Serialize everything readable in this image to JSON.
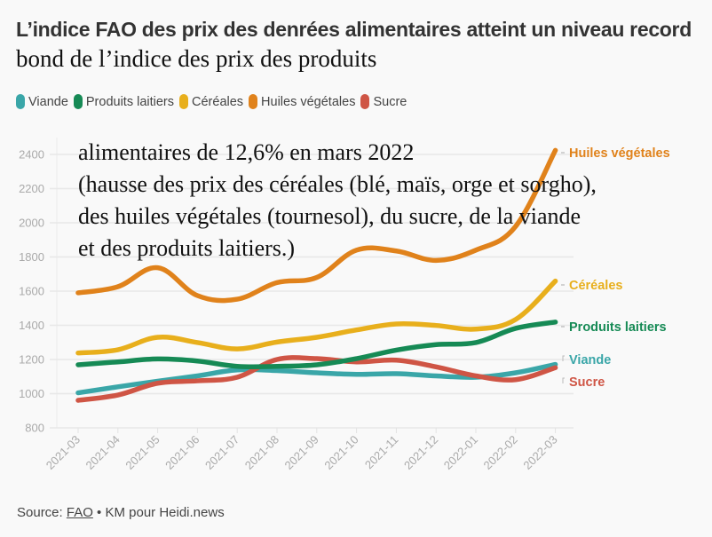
{
  "title": {
    "main": "L’indice FAO des prix des denrées alimentaires atteint un niveau record",
    "overlay_inline": "bond de l’indice des prix des produits"
  },
  "overlay_text": "alimentaires de 12,6% en mars 2022\n(hausse des prix des céréales (blé, maïs, orge et sorgho),\ndes huiles végétales (tournesol), du sucre, de la viande\net des produits laitiers.)",
  "legend": [
    {
      "label": "Viande",
      "color": "#3aa6a8"
    },
    {
      "label": "Produits laitiers",
      "color": "#168a55"
    },
    {
      "label": "Céréales",
      "color": "#e8af1c"
    },
    {
      "label": "Huiles végétales",
      "color": "#e0821b"
    },
    {
      "label": "Sucre",
      "color": "#cf5545"
    }
  ],
  "source": {
    "prefix": "Source: ",
    "link": "FAO",
    "suffix": " • KM pour Heidi.news"
  },
  "chart_data": {
    "type": "line",
    "title": "L’indice FAO des prix des denrées alimentaires atteint un niveau record",
    "xlabel": "",
    "ylabel": "",
    "x": [
      "2021-03",
      "2021-04",
      "2021-05",
      "2021-06",
      "2021-07",
      "2021-08",
      "2021-09",
      "2021-10",
      "2021-11",
      "2021-12",
      "2022-01",
      "2022-02",
      "2022-03"
    ],
    "ylim": [
      800,
      2400
    ],
    "yticks": [
      800,
      1000,
      1200,
      1400,
      1600,
      1800,
      2000,
      2200,
      2400
    ],
    "grid": true,
    "legend_position": "top-left",
    "series": [
      {
        "name": "Viande",
        "color": "#3aa6a8",
        "end_label": "Viande",
        "values": [
          1005,
          1040,
          1073,
          1104,
          1139,
          1135,
          1122,
          1113,
          1117,
          1104,
          1096,
          1122,
          1171
        ]
      },
      {
        "name": "Produits laitiers",
        "color": "#168a55",
        "end_label": "Produits laitiers",
        "values": [
          1169,
          1186,
          1203,
          1191,
          1160,
          1160,
          1169,
          1205,
          1255,
          1287,
          1299,
          1382,
          1419
        ]
      },
      {
        "name": "Céréales",
        "color": "#e8af1c",
        "end_label": "Céréales",
        "values": [
          1238,
          1257,
          1330,
          1299,
          1262,
          1302,
          1330,
          1373,
          1408,
          1399,
          1378,
          1434,
          1659
        ]
      },
      {
        "name": "Huiles végétales",
        "color": "#e0821b",
        "end_label": "Huiles végétales",
        "values": [
          1590,
          1626,
          1737,
          1574,
          1553,
          1650,
          1680,
          1840,
          1835,
          1780,
          1840,
          1979,
          2424
        ]
      },
      {
        "name": "Sucre",
        "color": "#cf5545",
        "end_label": "Sucre",
        "values": [
          961,
          992,
          1061,
          1075,
          1096,
          1200,
          1205,
          1186,
          1196,
          1157,
          1104,
          1082,
          1152
        ]
      }
    ]
  }
}
